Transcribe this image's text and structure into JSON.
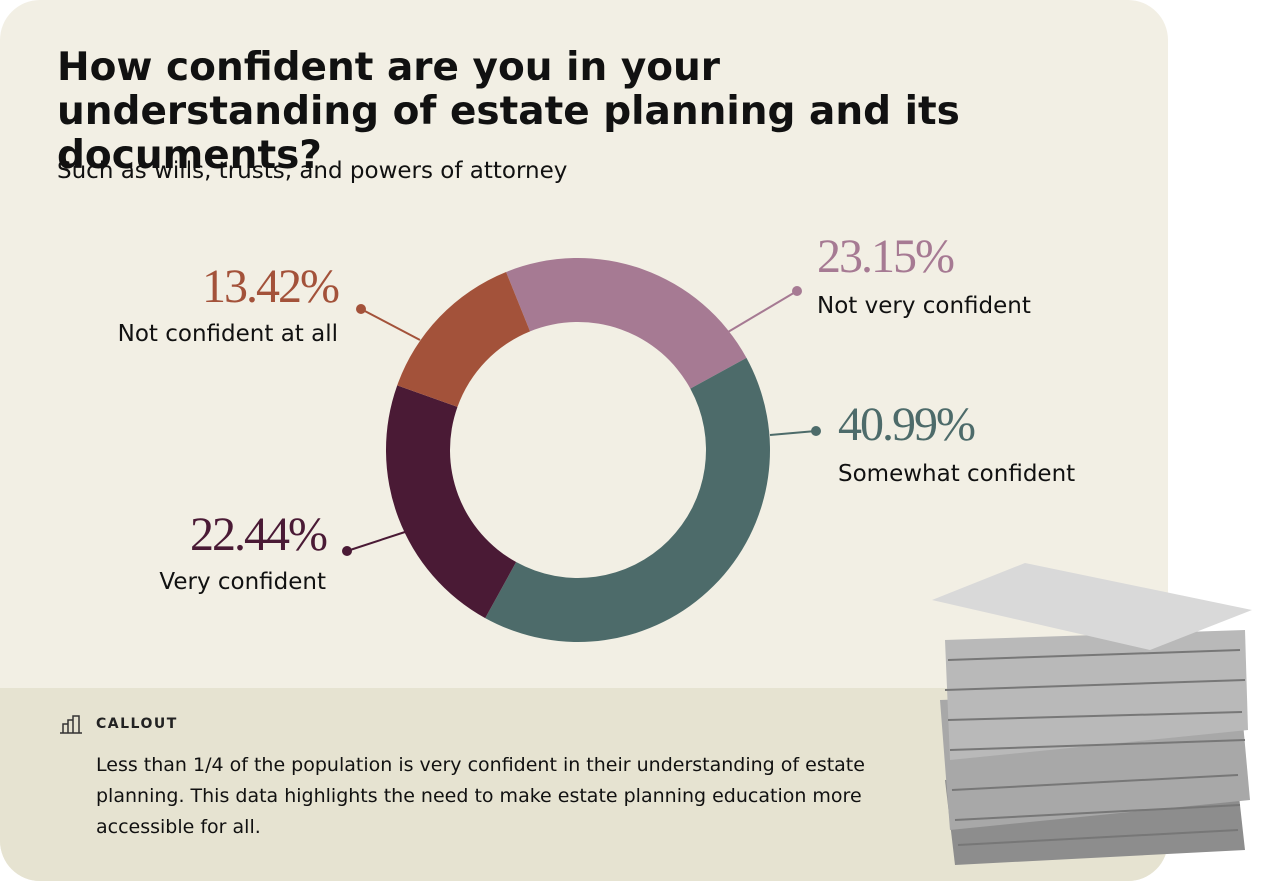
{
  "chart_data": {
    "type": "donut",
    "title": "How confident are you in your understanding of estate planning and its documents?",
    "subtitle": "Such as wills, trusts, and powers of attorney",
    "categories": [
      "Not very confident",
      "Somewhat confident",
      "Very confident",
      "Not confident at all"
    ],
    "values": [
      23.15,
      40.99,
      22.44,
      13.42
    ],
    "value_labels": [
      "23.15%",
      "40.99%",
      "22.44%",
      "13.42%"
    ],
    "colors": [
      "#a67a93",
      "#4d6b6a",
      "#4a1a35",
      "#a3523a"
    ]
  },
  "callout": {
    "label": "CALLOUT",
    "text": "Less than 1/4 of the population is very confident in their understanding of estate planning. This data highlights the need to make estate planning education more accessible for all."
  }
}
